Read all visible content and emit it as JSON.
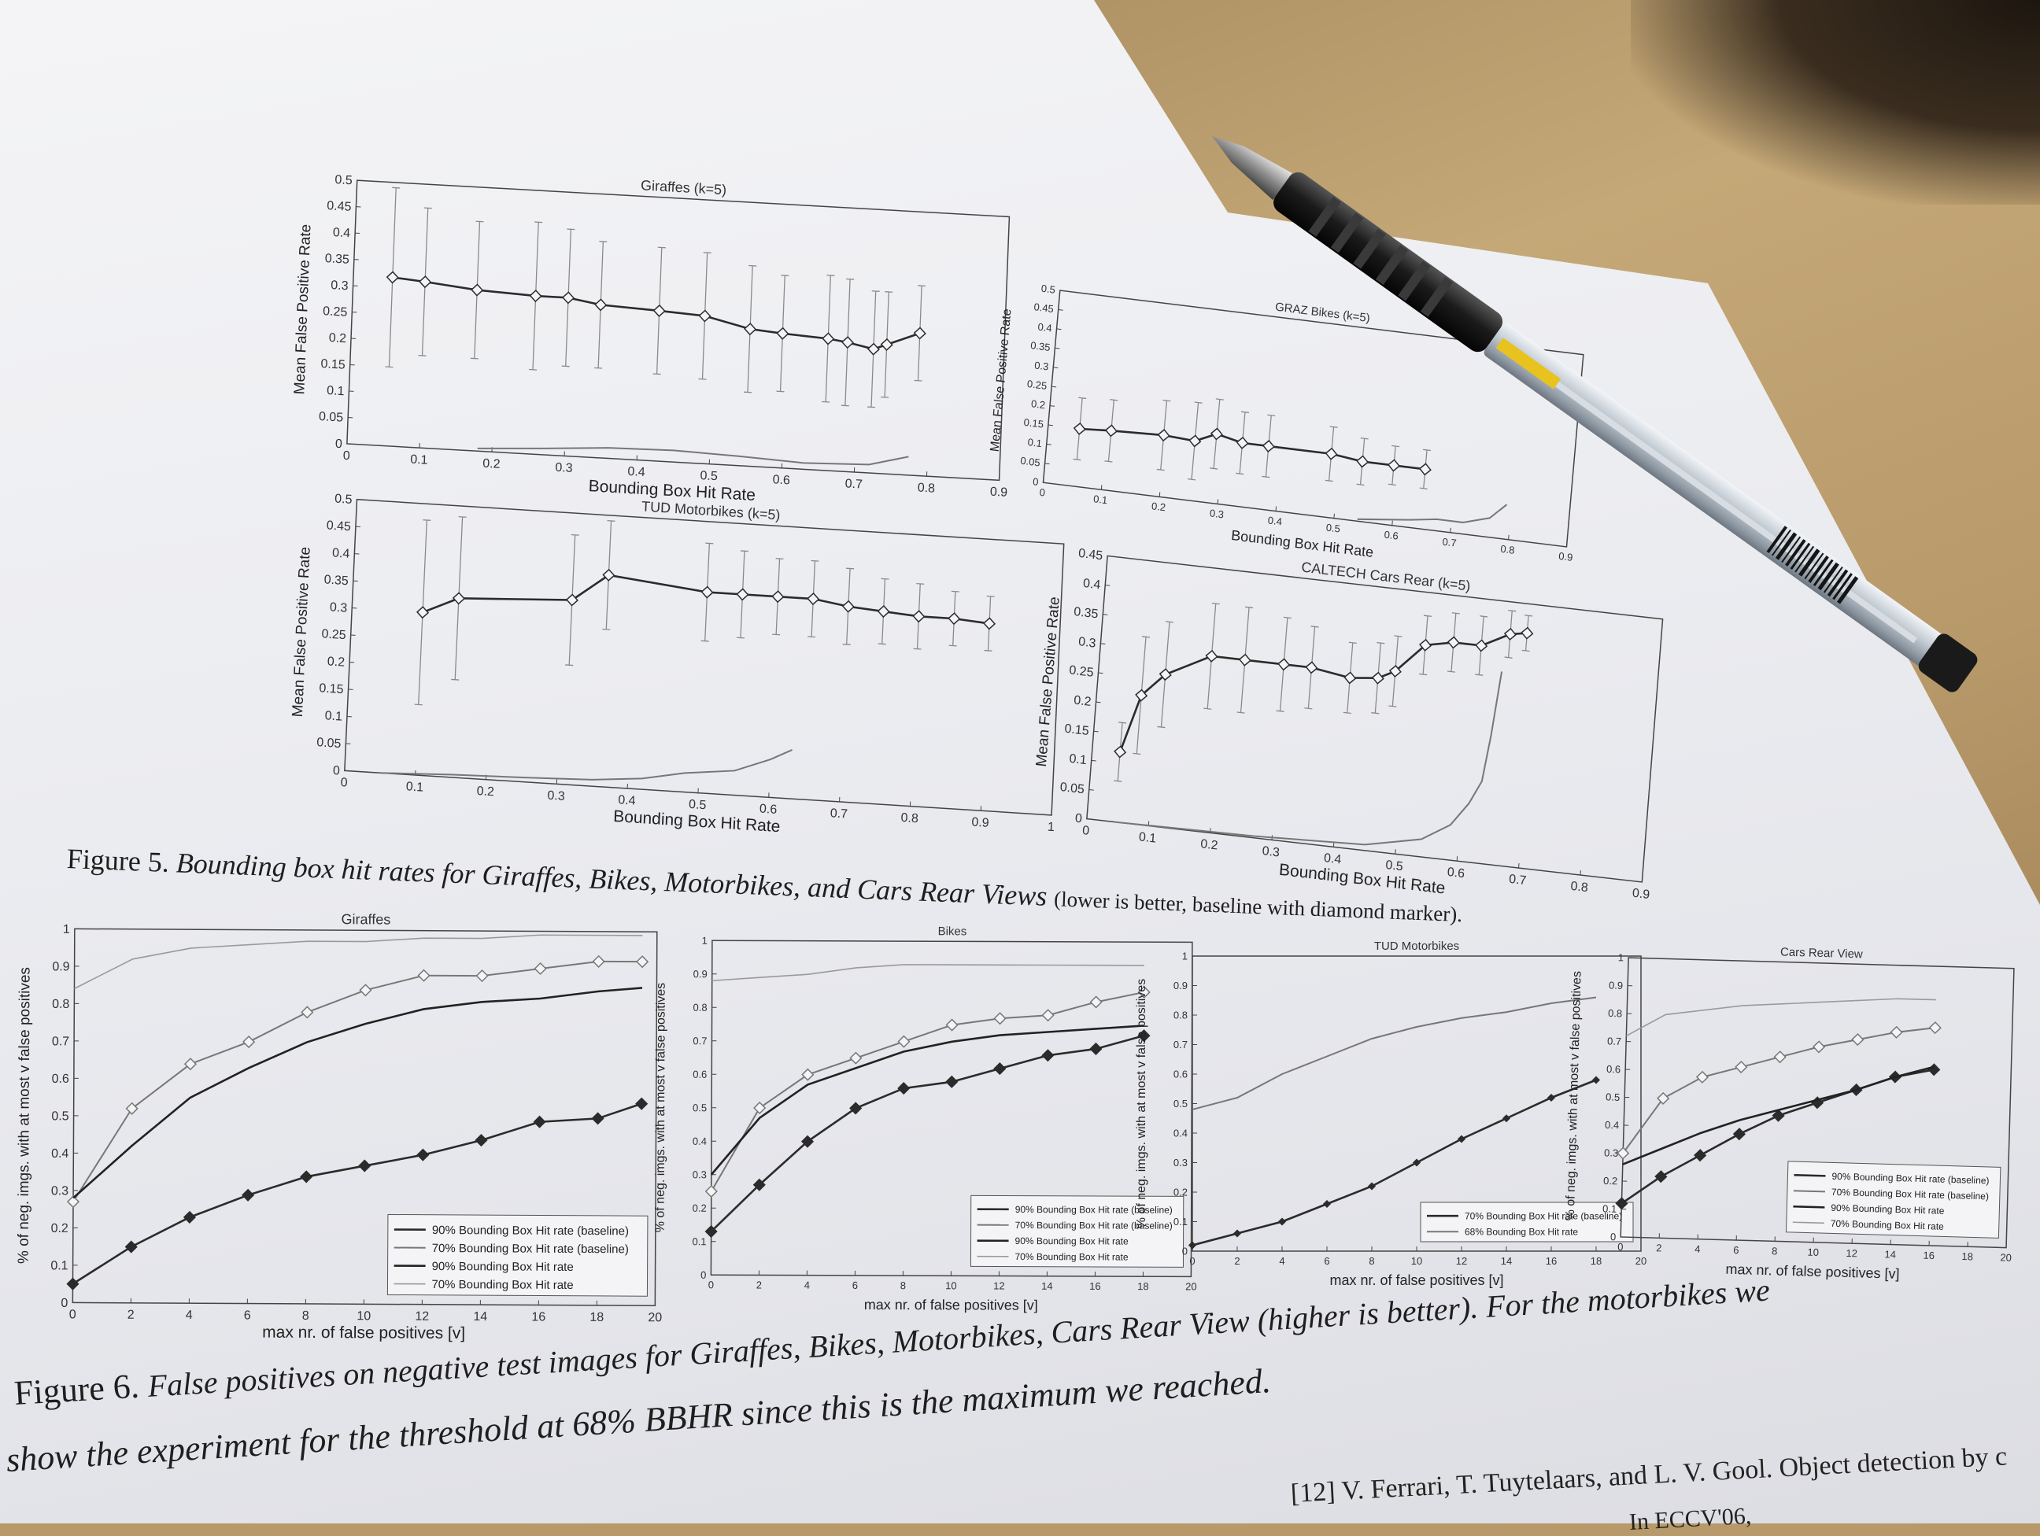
{
  "figure5": {
    "caption_label": "Figure 5.",
    "caption_text": "Bounding box hit rates for Giraffes, Bikes, Motorbikes, and Cars Rear Views",
    "caption_tail": "(lower is better, baseline with diamond marker)."
  },
  "figure6": {
    "caption_label": "Figure 6.",
    "caption_line1": "False positives on negative test images for Giraffes, Bikes, Motorbikes, Cars Rear View (higher is better). For the motorbikes we",
    "caption_line2": "show the experiment for the threshold at 68% BBHR since this is the maximum we reached."
  },
  "reference": {
    "text": "[12]  V. Ferrari, T. Tuytelaars, and L. V. Gool. Object detection by c",
    "text2": "In ECCV'06,"
  },
  "pen": {
    "colors": {
      "tip": "#9a9a9a",
      "grip": "#1c1c1c",
      "barrel": "#c9cfd6",
      "ink": "#e8c21e"
    }
  },
  "chart_data": [
    {
      "id": "giraffes-bbhr",
      "type": "line",
      "title": "Giraffes (k=5)",
      "xlabel": "Bounding Box Hit Rate",
      "ylabel": "Mean False Positive Rate",
      "xlim": [
        0,
        1
      ],
      "ylim": [
        0,
        0.5
      ],
      "xticks": [
        "0",
        "0.1",
        "0.2",
        "0.3",
        "0.4",
        "0.5",
        "0.6",
        "0.7",
        "0.8",
        "0.9"
      ],
      "yticks": [
        "0",
        "0.05",
        "0.1",
        "0.15",
        "0.2",
        "0.25",
        "0.3",
        "0.35",
        "0.4",
        "0.45",
        "0.5"
      ],
      "series": [
        {
          "name": "",
          "marker": "diamond",
          "x": [
            0.06,
            0.11,
            0.19,
            0.28,
            0.33,
            0.38,
            0.47,
            0.54,
            0.61,
            0.66,
            0.73,
            0.76,
            0.8,
            0.82,
            0.87
          ],
          "y": [
            0.32,
            0.315,
            0.305,
            0.3,
            0.3,
            0.29,
            0.285,
            0.28,
            0.26,
            0.255,
            0.25,
            0.245,
            0.235,
            0.245,
            0.27
          ],
          "err": [
            0.17,
            0.14,
            0.13,
            0.14,
            0.13,
            0.12,
            0.12,
            0.12,
            0.12,
            0.11,
            0.12,
            0.12,
            0.11,
            0.1,
            0.09
          ]
        },
        {
          "name": "",
          "marker": "none",
          "x": [
            0.2,
            0.3,
            0.4,
            0.5,
            0.6,
            0.7,
            0.8,
            0.86
          ],
          "y": [
            0.005,
            0.012,
            0.02,
            0.022,
            0.018,
            0.012,
            0.016,
            0.035
          ]
        }
      ]
    },
    {
      "id": "bikes-bbhr",
      "type": "line",
      "title": "GRAZ Bikes (k=5)",
      "xlabel": "Bounding Box Hit Rate",
      "ylabel": "Mean False Positive Rate",
      "xlim": [
        0,
        1
      ],
      "ylim": [
        0,
        0.5
      ],
      "xticks": [
        "0",
        "0.1",
        "0.2",
        "0.3",
        "0.4",
        "0.5",
        "0.6",
        "0.7",
        "0.8",
        "0.9"
      ],
      "yticks": [
        "0",
        "0.05",
        "0.1",
        "0.15",
        "0.2",
        "0.25",
        "0.3",
        "0.35",
        "0.4",
        "0.45",
        "0.5"
      ],
      "series": [
        {
          "name": "",
          "marker": "diamond",
          "x": [
            0.06,
            0.12,
            0.22,
            0.28,
            0.32,
            0.37,
            0.42,
            0.54,
            0.6,
            0.66,
            0.72
          ],
          "y": [
            0.15,
            0.155,
            0.16,
            0.155,
            0.18,
            0.165,
            0.165,
            0.165,
            0.155,
            0.155,
            0.155
          ],
          "err": [
            0.08,
            0.08,
            0.09,
            0.1,
            0.09,
            0.08,
            0.08,
            0.07,
            0.06,
            0.05,
            0.05
          ]
        },
        {
          "name": "",
          "marker": "none",
          "x": [
            0.6,
            0.7,
            0.75,
            0.8,
            0.85,
            0.88
          ],
          "y": [
            0.005,
            0.02,
            0.03,
            0.03,
            0.05,
            0.09
          ]
        }
      ]
    },
    {
      "id": "motorbikes-bbhr",
      "type": "line",
      "title": "TUD Motorbikes (k=5)",
      "xlabel": "Bounding Box Hit Rate",
      "ylabel": "Mean False Positive Rate",
      "xlim": [
        0,
        1
      ],
      "ylim": [
        0,
        0.5
      ],
      "xticks": [
        "0",
        "0.1",
        "0.2",
        "0.3",
        "0.4",
        "0.5",
        "0.6",
        "0.7",
        "0.8",
        "0.9",
        "1"
      ],
      "yticks": [
        "0",
        "0.05",
        "0.1",
        "0.15",
        "0.2",
        "0.25",
        "0.3",
        "0.35",
        "0.4",
        "0.45",
        "0.5"
      ],
      "series": [
        {
          "name": "",
          "marker": "diamond",
          "x": [
            0.1,
            0.15,
            0.31,
            0.36,
            0.5,
            0.55,
            0.6,
            0.65,
            0.7,
            0.75,
            0.8,
            0.85,
            0.9
          ],
          "y": [
            0.3,
            0.33,
            0.34,
            0.39,
            0.37,
            0.37,
            0.37,
            0.37,
            0.36,
            0.355,
            0.35,
            0.35,
            0.345
          ],
          "err": [
            0.17,
            0.15,
            0.12,
            0.1,
            0.09,
            0.08,
            0.07,
            0.07,
            0.07,
            0.06,
            0.06,
            0.05,
            0.05
          ]
        },
        {
          "name": "",
          "marker": "none",
          "x": [
            0.05,
            0.15,
            0.25,
            0.35,
            0.42,
            0.48,
            0.55,
            0.6,
            0.63
          ],
          "y": [
            0.0,
            0.005,
            0.008,
            0.012,
            0.02,
            0.035,
            0.045,
            0.07,
            0.09
          ]
        }
      ]
    },
    {
      "id": "cars-bbhr",
      "type": "line",
      "title": "CALTECH Cars Rear (k=5)",
      "xlabel": "Bounding Box Hit Rate",
      "ylabel": "Mean False Positive Rate",
      "xlim": [
        0,
        1
      ],
      "ylim": [
        0,
        0.45
      ],
      "xticks": [
        "0",
        "0.1",
        "0.2",
        "0.3",
        "0.4",
        "0.5",
        "0.6",
        "0.7",
        "0.8",
        "0.9"
      ],
      "yticks": [
        "0",
        "0.05",
        "0.1",
        "0.15",
        "0.2",
        "0.25",
        "0.3",
        "0.35",
        "0.4",
        "0.45"
      ],
      "series": [
        {
          "name": "",
          "marker": "diamond",
          "x": [
            0.05,
            0.08,
            0.12,
            0.2,
            0.26,
            0.33,
            0.38,
            0.45,
            0.5,
            0.53,
            0.58,
            0.63,
            0.68,
            0.73,
            0.76
          ],
          "y": [
            0.12,
            0.22,
            0.26,
            0.3,
            0.3,
            0.3,
            0.3,
            0.29,
            0.295,
            0.31,
            0.36,
            0.37,
            0.37,
            0.395,
            0.4
          ],
          "err": [
            0.05,
            0.1,
            0.09,
            0.09,
            0.09,
            0.08,
            0.07,
            0.06,
            0.06,
            0.06,
            0.05,
            0.05,
            0.05,
            0.04,
            0.03
          ]
        },
        {
          "name": "",
          "marker": "none",
          "x": [
            0.05,
            0.3,
            0.5,
            0.6,
            0.65,
            0.68,
            0.7,
            0.71,
            0.72
          ],
          "y": [
            0.0,
            0.003,
            0.01,
            0.03,
            0.06,
            0.1,
            0.14,
            0.22,
            0.33
          ]
        }
      ]
    },
    {
      "id": "giraffes-fp",
      "type": "line",
      "title": "Giraffes",
      "xlabel": "max nr. of false positives [v]",
      "ylabel": "% of neg. imgs. with at most v false positives",
      "xlim": [
        0,
        20
      ],
      "ylim": [
        0,
        1
      ],
      "xticks": [
        "0",
        "2",
        "4",
        "6",
        "8",
        "10",
        "12",
        "14",
        "16",
        "18",
        "20"
      ],
      "yticks": [
        "0",
        "0.1",
        "0.2",
        "0.3",
        "0.4",
        "0.5",
        "0.6",
        "0.7",
        "0.8",
        "0.9",
        "1"
      ],
      "legend": "bottom-right",
      "series": [
        {
          "name": "90% Bounding Box Hit rate (baseline)",
          "marker": "filled-diamond",
          "x": [
            0,
            2,
            4,
            6,
            8,
            10,
            12,
            14,
            16,
            18,
            19.5
          ],
          "y": [
            0.05,
            0.15,
            0.23,
            0.29,
            0.34,
            0.37,
            0.4,
            0.44,
            0.49,
            0.5,
            0.54
          ]
        },
        {
          "name": "70% Bounding Box Hit rate (baseline)",
          "marker": "open-diamond",
          "x": [
            0,
            2,
            4,
            6,
            8,
            10,
            12,
            14,
            16,
            18,
            19.5
          ],
          "y": [
            0.27,
            0.52,
            0.64,
            0.7,
            0.78,
            0.84,
            0.88,
            0.88,
            0.9,
            0.92,
            0.92
          ]
        },
        {
          "name": "90% Bounding Box Hit rate",
          "marker": "none",
          "x": [
            0,
            2,
            4,
            6,
            8,
            10,
            12,
            14,
            16,
            18,
            19.5
          ],
          "y": [
            0.28,
            0.42,
            0.55,
            0.63,
            0.7,
            0.75,
            0.79,
            0.81,
            0.82,
            0.84,
            0.85
          ]
        },
        {
          "name": "70% Bounding Box Hit rate",
          "marker": "none",
          "x": [
            0,
            2,
            4,
            6,
            8,
            10,
            12,
            14,
            16,
            18,
            19.5
          ],
          "y": [
            0.84,
            0.92,
            0.95,
            0.96,
            0.97,
            0.97,
            0.98,
            0.98,
            0.99,
            0.99,
            0.99
          ]
        }
      ]
    },
    {
      "id": "bikes-fp",
      "type": "line",
      "title": "Bikes",
      "xlabel": "max nr. of false positives [v]",
      "ylabel": "% of neg. imgs. with at most v false positives",
      "xlim": [
        0,
        20
      ],
      "ylim": [
        0,
        1
      ],
      "xticks": [
        "0",
        "2",
        "4",
        "6",
        "8",
        "10",
        "12",
        "14",
        "16",
        "18",
        "20"
      ],
      "yticks": [
        "0",
        "0.1",
        "0.2",
        "0.3",
        "0.4",
        "0.5",
        "0.6",
        "0.7",
        "0.8",
        "0.9",
        "1"
      ],
      "legend": "bottom-right",
      "series": [
        {
          "name": "90% Bounding Box Hit rate (baseline)",
          "marker": "filled-diamond",
          "x": [
            0,
            2,
            4,
            6,
            8,
            10,
            12,
            14,
            16,
            18
          ],
          "y": [
            0.13,
            0.27,
            0.4,
            0.5,
            0.56,
            0.58,
            0.62,
            0.66,
            0.68,
            0.72
          ]
        },
        {
          "name": "70% Bounding Box Hit rate (baseline)",
          "marker": "open-diamond",
          "x": [
            0,
            2,
            4,
            6,
            8,
            10,
            12,
            14,
            16,
            18
          ],
          "y": [
            0.25,
            0.5,
            0.6,
            0.65,
            0.7,
            0.75,
            0.77,
            0.78,
            0.82,
            0.85
          ]
        },
        {
          "name": "90% Bounding Box Hit rate",
          "marker": "none",
          "x": [
            0,
            2,
            4,
            6,
            8,
            10,
            12,
            14,
            16,
            18
          ],
          "y": [
            0.3,
            0.47,
            0.57,
            0.62,
            0.67,
            0.7,
            0.72,
            0.73,
            0.74,
            0.75
          ]
        },
        {
          "name": "70% Bounding Box Hit rate",
          "marker": "none",
          "x": [
            0,
            2,
            4,
            6,
            8,
            10,
            12,
            14,
            16,
            18
          ],
          "y": [
            0.88,
            0.89,
            0.9,
            0.92,
            0.93,
            0.93,
            0.93,
            0.93,
            0.93,
            0.93
          ]
        }
      ]
    },
    {
      "id": "motorbikes-fp",
      "type": "line",
      "title": "TUD Motorbikes",
      "xlabel": "max nr. of false positives [v]",
      "ylabel": "% of neg. imgs. with at most v false positives",
      "xlim": [
        0,
        20
      ],
      "ylim": [
        0,
        1
      ],
      "xticks": [
        "0",
        "2",
        "4",
        "6",
        "8",
        "10",
        "12",
        "14",
        "16",
        "18",
        "20"
      ],
      "yticks": [
        "0",
        "0.1",
        "0.2",
        "0.3",
        "0.4",
        "0.5",
        "0.6",
        "0.7",
        "0.8",
        "0.9",
        "1"
      ],
      "legend": "bottom-right",
      "series": [
        {
          "name": "70% Bounding Box Hit rate (baseline)",
          "marker": "small-diamond",
          "x": [
            0,
            2,
            4,
            6,
            8,
            10,
            12,
            14,
            16,
            18
          ],
          "y": [
            0.02,
            0.06,
            0.1,
            0.16,
            0.22,
            0.3,
            0.38,
            0.45,
            0.52,
            0.58
          ]
        },
        {
          "name": "68% Bounding Box Hit rate",
          "marker": "none",
          "x": [
            0,
            2,
            4,
            6,
            8,
            10,
            12,
            14,
            16,
            18
          ],
          "y": [
            0.48,
            0.52,
            0.6,
            0.66,
            0.72,
            0.76,
            0.79,
            0.81,
            0.84,
            0.86
          ]
        }
      ]
    },
    {
      "id": "cars-fp",
      "type": "line",
      "title": "Cars Rear View",
      "xlabel": "max nr. of false positives [v]",
      "ylabel": "% of neg. imgs. with at most v false positives",
      "xlim": [
        0,
        20
      ],
      "ylim": [
        0,
        1
      ],
      "xticks": [
        "0",
        "2",
        "4",
        "6",
        "8",
        "10",
        "12",
        "14",
        "16",
        "18",
        "20"
      ],
      "yticks": [
        "0",
        "0.1",
        "0.2",
        "0.3",
        "0.4",
        "0.5",
        "0.6",
        "0.7",
        "0.8",
        "0.9",
        "1"
      ],
      "legend": "bottom-right",
      "series": [
        {
          "name": "90% Bounding Box Hit rate (baseline)",
          "marker": "filled-diamond",
          "x": [
            0,
            2,
            4,
            6,
            8,
            10,
            12,
            14,
            16
          ],
          "y": [
            0.12,
            0.22,
            0.3,
            0.38,
            0.45,
            0.5,
            0.55,
            0.6,
            0.63
          ]
        },
        {
          "name": "70% Bounding Box Hit rate (baseline)",
          "marker": "open-diamond",
          "x": [
            0,
            2,
            4,
            6,
            8,
            10,
            12,
            14,
            16
          ],
          "y": [
            0.3,
            0.5,
            0.58,
            0.62,
            0.66,
            0.7,
            0.73,
            0.76,
            0.78
          ]
        },
        {
          "name": "90% Bounding Box Hit rate",
          "marker": "none",
          "x": [
            0,
            2,
            4,
            6,
            8,
            10,
            12,
            14,
            16
          ],
          "y": [
            0.26,
            0.32,
            0.38,
            0.43,
            0.47,
            0.51,
            0.55,
            0.6,
            0.64
          ]
        },
        {
          "name": "70% Bounding Box Hit rate",
          "marker": "none",
          "x": [
            0,
            2,
            4,
            6,
            8,
            10,
            12,
            14,
            16
          ],
          "y": [
            0.72,
            0.8,
            0.82,
            0.84,
            0.85,
            0.86,
            0.87,
            0.88,
            0.88
          ]
        }
      ]
    }
  ]
}
